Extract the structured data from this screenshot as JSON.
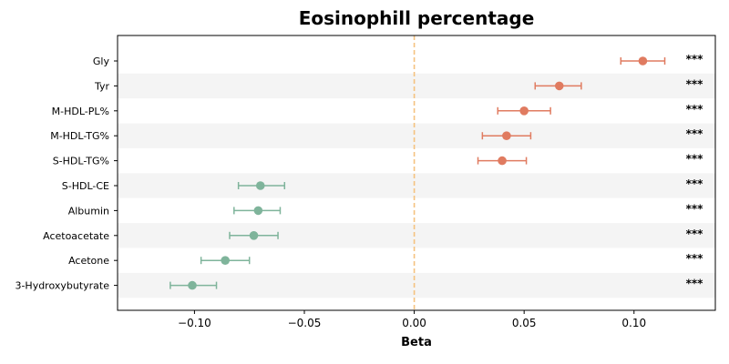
{
  "chart_data": {
    "type": "forest",
    "title": "Eosinophill percentage",
    "xlabel": "Beta",
    "xlim": [
      -0.135,
      0.137
    ],
    "xticks": [
      -0.1,
      -0.05,
      0.0,
      0.05,
      0.1
    ],
    "xtick_labels": [
      "−0.10",
      "−0.05",
      "0.00",
      "0.05",
      "0.10"
    ],
    "reference_line": 0,
    "colors": {
      "positive": "#e07b60",
      "negative": "#7fb49b",
      "reference": "#f5c27f",
      "band": "#f4f4f4"
    },
    "rows": [
      {
        "label": "Gly",
        "beta": 0.104,
        "lo": 0.094,
        "hi": 0.114,
        "sig": "***"
      },
      {
        "label": "Tyr",
        "beta": 0.066,
        "lo": 0.055,
        "hi": 0.076,
        "sig": "***"
      },
      {
        "label": "M-HDL-PL%",
        "beta": 0.05,
        "lo": 0.038,
        "hi": 0.062,
        "sig": "***"
      },
      {
        "label": "M-HDL-TG%",
        "beta": 0.042,
        "lo": 0.031,
        "hi": 0.053,
        "sig": "***"
      },
      {
        "label": "S-HDL-TG%",
        "beta": 0.04,
        "lo": 0.029,
        "hi": 0.051,
        "sig": "***"
      },
      {
        "label": "S-HDL-CE",
        "beta": -0.07,
        "lo": -0.08,
        "hi": -0.059,
        "sig": "***"
      },
      {
        "label": "Albumin",
        "beta": -0.071,
        "lo": -0.082,
        "hi": -0.061,
        "sig": "***"
      },
      {
        "label": "Acetoacetate",
        "beta": -0.073,
        "lo": -0.084,
        "hi": -0.062,
        "sig": "***"
      },
      {
        "label": "Acetone",
        "beta": -0.086,
        "lo": -0.097,
        "hi": -0.075,
        "sig": "***"
      },
      {
        "label": "3-Hydroxybutyrate",
        "beta": -0.101,
        "lo": -0.111,
        "hi": -0.09,
        "sig": "***"
      }
    ]
  }
}
